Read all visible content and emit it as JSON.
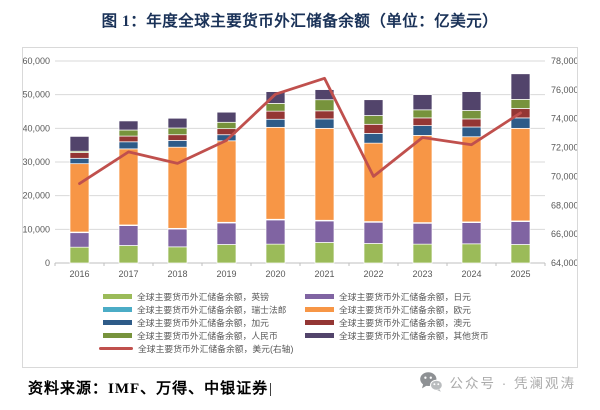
{
  "title": "图 1：年度全球主要货币外汇储备余额（单位：亿美元）",
  "chart_data": {
    "type": "bar",
    "subtype": "stacked-bars-with-line",
    "categories": [
      "2016",
      "2017",
      "2018",
      "2019",
      "2020",
      "2021",
      "2022",
      "2023",
      "2024",
      "2025"
    ],
    "series": [
      {
        "id": "gbp",
        "name": "全球主要货币外汇储备余额，英镑",
        "color": "#9BBB59",
        "axis": "left",
        "kind": "bar",
        "values": [
          4700,
          5200,
          4800,
          5500,
          5600,
          6100,
          5800,
          5600,
          5700,
          5500
        ]
      },
      {
        "id": "jpy",
        "name": "全球主要货币外汇储备余额，日元",
        "color": "#8064A2",
        "axis": "left",
        "kind": "bar",
        "values": [
          4300,
          5900,
          5300,
          6400,
          7200,
          6400,
          6300,
          6200,
          6300,
          6800
        ]
      },
      {
        "id": "chf",
        "name": "全球主要货币外汇储备余额，瑞士法郎",
        "color": "#4BACC6",
        "axis": "left",
        "kind": "bar",
        "values": [
          200,
          200,
          200,
          200,
          200,
          200,
          200,
          200,
          200,
          200
        ]
      },
      {
        "id": "eur",
        "name": "全球主要货币外汇储备余额，欧元",
        "color": "#F79646",
        "axis": "left",
        "kind": "bar",
        "values": [
          20300,
          22600,
          24100,
          24200,
          27300,
          27300,
          23300,
          25900,
          25300,
          27500
        ]
      },
      {
        "id": "cad",
        "name": "全球主要货币外汇储备余额，加元",
        "color": "#2E5B88",
        "axis": "left",
        "kind": "bar",
        "values": [
          1600,
          2100,
          2000,
          1800,
          2400,
          2800,
          2900,
          2900,
          2900,
          3100
        ]
      },
      {
        "id": "aud",
        "name": "全球主要货币外汇储备余额，澳元",
        "color": "#943634",
        "axis": "left",
        "kind": "bar",
        "values": [
          1700,
          1700,
          1700,
          1800,
          2400,
          2400,
          2700,
          2300,
          2400,
          2800
        ]
      },
      {
        "id": "cny",
        "name": "全球主要货币外汇储备余额，人民币",
        "color": "#77933C",
        "axis": "left",
        "kind": "bar",
        "values": [
          400,
          1800,
          2000,
          1900,
          2300,
          3300,
          2600,
          2400,
          2500,
          2700
        ]
      },
      {
        "id": "other",
        "name": "全球主要货币外汇储备余额，其他货币",
        "color": "#52446B",
        "axis": "left",
        "kind": "bar",
        "values": [
          4400,
          2700,
          2900,
          3000,
          3500,
          3000,
          4700,
          4500,
          5600,
          7600
        ]
      },
      {
        "id": "usd",
        "name": "全球主要货币外汇储备余额，美元(右轴)",
        "color": "#C0504D",
        "axis": "right",
        "kind": "line",
        "values": [
          69500,
          71700,
          70900,
          72500,
          75700,
          76800,
          70000,
          72700,
          72200,
          74400
        ]
      }
    ],
    "legend_rows": [
      [
        0,
        1
      ],
      [
        2,
        3
      ],
      [
        4,
        5
      ],
      [
        6,
        7
      ],
      [
        8
      ]
    ],
    "left_axis": {
      "min": 0,
      "max": 60000,
      "step": 10000
    },
    "right_axis": {
      "min": 64000,
      "max": 78000,
      "step": 2000
    },
    "grid": true,
    "legend_position": "bottom"
  },
  "footer": {
    "source": "资料来源：IMF、万得、中银证券",
    "caret": "|",
    "watermark": "公众号 · 凭澜观涛"
  }
}
